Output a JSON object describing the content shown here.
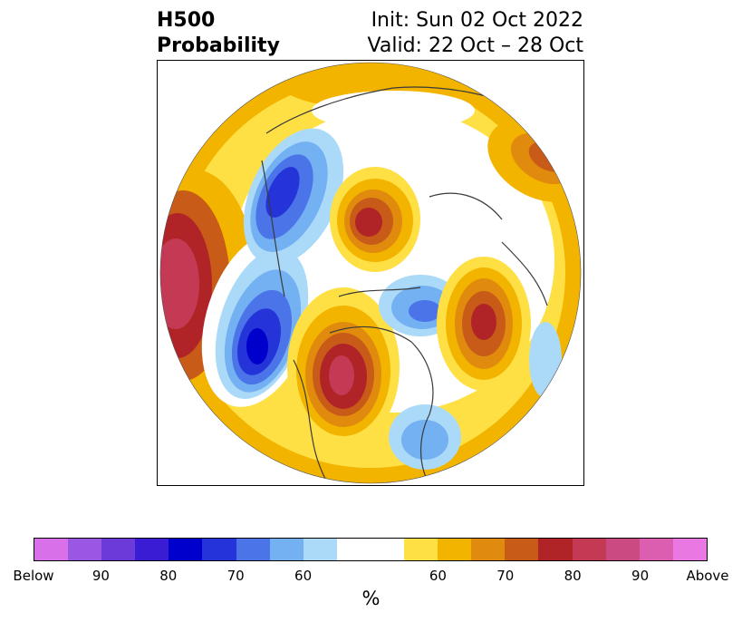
{
  "title": {
    "left_line1": "H500",
    "left_line2": "Probability",
    "right_line1": "Init: Sun 02 Oct 2022",
    "right_line2": "Valid: 22 Oct – 28 Oct"
  },
  "map": {
    "projection": "north-polar-stereographic",
    "colors": {
      "ocean_bg": "#ffffff",
      "coastline": "#3a3a3a",
      "below_60": "#abdaf8",
      "below_70": "#74b1f2",
      "below_75": "#4a74e8",
      "below_80": "#2434d8",
      "below_85": "#0000cc",
      "above_60": "#ffe044",
      "above_65": "#f3b400",
      "above_70": "#e08b0e",
      "above_75": "#c85b18",
      "above_80": "#b02428",
      "above_85": "#c43a55"
    }
  },
  "colorbar": {
    "segments": [
      "#d870ea",
      "#9a58e2",
      "#6c3ad8",
      "#3a1cd4",
      "#0000cc",
      "#2434d8",
      "#4a74e8",
      "#74b1f2",
      "#abdaf8",
      "#ffffff",
      "#ffffff",
      "#ffe044",
      "#f3b400",
      "#e08b0e",
      "#c85b18",
      "#b02428",
      "#c43a55",
      "#cc4a82",
      "#dc5eb0",
      "#ea78e2"
    ],
    "ticks": [
      "Below",
      "90",
      "80",
      "70",
      "60",
      "60",
      "70",
      "80",
      "90",
      "Above"
    ],
    "unit": "%"
  }
}
